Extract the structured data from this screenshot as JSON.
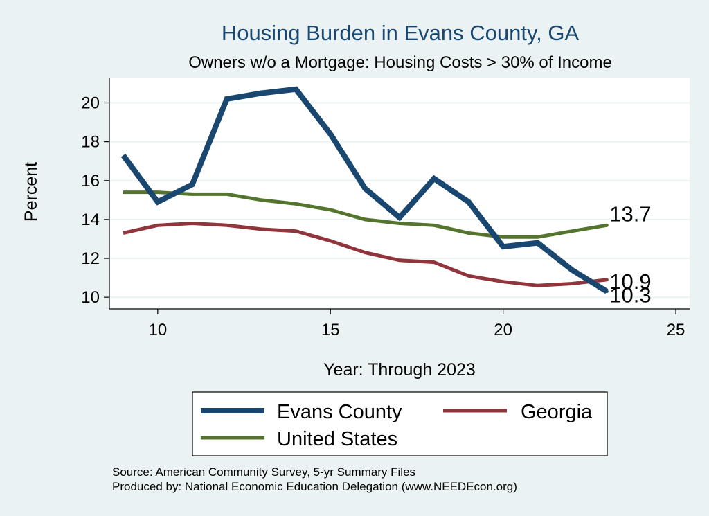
{
  "colors": {
    "background": "#eaf2f3",
    "plot_background": "#ffffff",
    "grid": "#eaf2f3",
    "title": "#1a476f"
  },
  "chart_data": {
    "type": "line",
    "title": "Housing Burden in Evans County, GA",
    "subtitle": "Owners w/o a Mortgage: Housing Costs > 30% of Income",
    "xlabel": "Year: Through 2023",
    "ylabel": "Percent",
    "xlim": [
      8.6,
      25.4
    ],
    "ylim": [
      9.4,
      21.3
    ],
    "x_ticks": [
      10,
      15,
      20,
      25
    ],
    "y_ticks": [
      10,
      12,
      14,
      16,
      18,
      20
    ],
    "grid": true,
    "x": [
      9,
      10,
      11,
      12,
      13,
      14,
      15,
      16,
      17,
      18,
      19,
      20,
      21,
      22,
      23
    ],
    "series": [
      {
        "name": "Evans County",
        "color": "#1a476f",
        "line_width": 8,
        "values": [
          17.3,
          14.9,
          15.8,
          20.2,
          20.5,
          20.7,
          18.4,
          15.6,
          14.1,
          16.1,
          14.9,
          12.6,
          12.8,
          11.4,
          10.3
        ],
        "end_label": "10.3"
      },
      {
        "name": "Georgia",
        "color": "#90353b",
        "line_width": 5,
        "values": [
          13.3,
          13.7,
          13.8,
          13.7,
          13.5,
          13.4,
          12.9,
          12.3,
          11.9,
          11.8,
          11.1,
          10.8,
          10.6,
          10.7,
          10.9
        ],
        "end_label": "10.9"
      },
      {
        "name": "United States",
        "color": "#55752f",
        "line_width": 5,
        "values": [
          15.4,
          15.4,
          15.3,
          15.3,
          15.0,
          14.8,
          14.5,
          14.0,
          13.8,
          13.7,
          13.3,
          13.1,
          13.1,
          13.4,
          13.7
        ],
        "end_label": "13.7"
      }
    ],
    "legend": {
      "placement": "bottom",
      "entries": [
        "Evans County",
        "Georgia",
        "United States"
      ]
    },
    "notes": [
      "Source: American Community Survey, 5-yr Summary Files",
      "Produced by: National Economic Education Delegation (www.NEEDEcon.org)"
    ]
  }
}
